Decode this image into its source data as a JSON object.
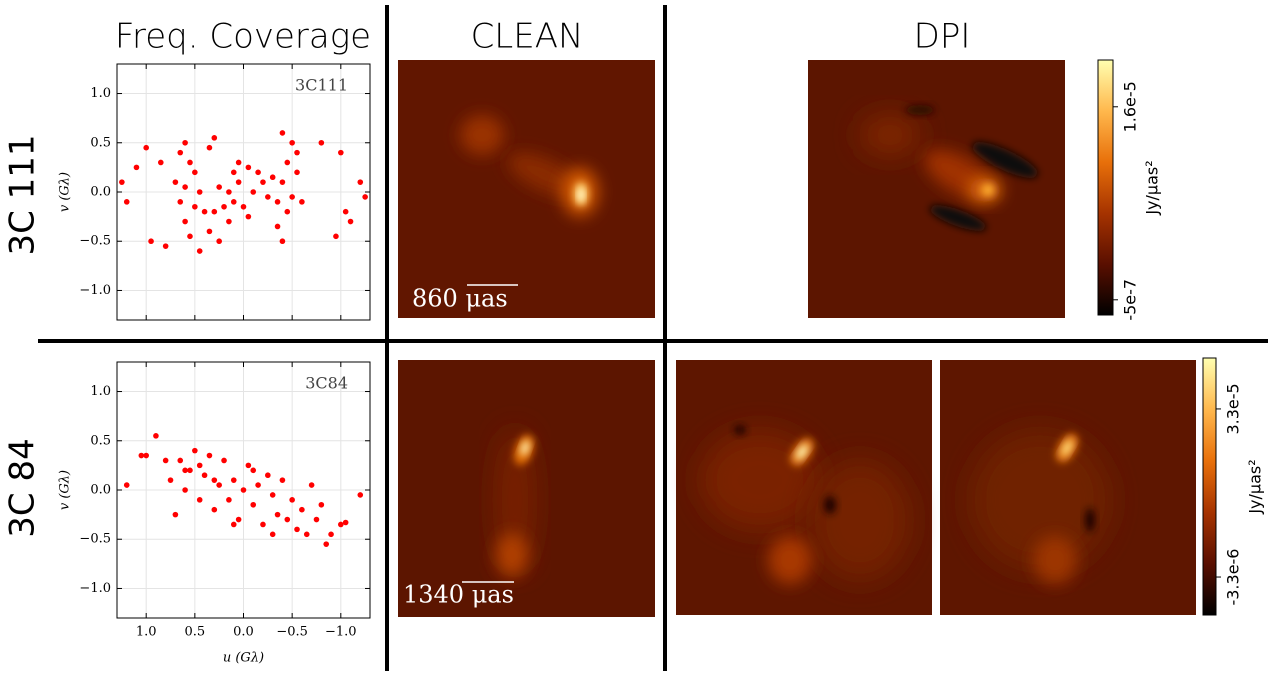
{
  "figure": {
    "column_titles": [
      "Freq. Coverage",
      "CLEAN",
      "DPI"
    ],
    "row_labels": [
      "3C 111",
      "3C 84"
    ],
    "scale_bars": [
      "860 μas",
      "1340 μas"
    ]
  },
  "chart_data": [
    {
      "type": "scatter",
      "annotation": "3C111",
      "ylabel": "v (Gλ)",
      "color": "#ff0000",
      "grid": true,
      "xlim": [
        1.3,
        -1.3
      ],
      "ylim": [
        -1.3,
        1.3
      ],
      "xticks": [
        1,
        0.5,
        0,
        -0.5,
        -1
      ],
      "yticks": [
        {
          "value": 1,
          "label": "1.0"
        },
        {
          "value": 0.5,
          "label": "0.5"
        },
        {
          "value": 0,
          "label": "0.0"
        },
        {
          "value": -0.5,
          "label": "−0.5"
        },
        {
          "value": -1,
          "label": "−1.0"
        }
      ],
      "x": [
        0.65,
        0.6,
        0.55,
        0.7,
        0.65,
        0.6,
        0.55,
        0.45,
        0.5,
        0.45,
        0.4,
        0.35,
        0.3,
        0.35,
        0.25,
        0.5,
        0.6,
        0.1,
        0.05,
        -0.05,
        -0.15,
        0.15,
        0.1,
        0,
        -0.1,
        -0.2,
        -0.25,
        0.05,
        0.2,
        -0.05,
        0.25,
        0.3,
        0.15,
        -0.4,
        -0.5,
        -0.45,
        -0.55,
        -0.4,
        -0.5,
        -0.45,
        -0.35,
        -0.4,
        -0.6,
        -0.55,
        -0.3,
        -0.35,
        1.25,
        1.2,
        1,
        0.95,
        1.1,
        0.8,
        -1.2,
        -1.25,
        -1,
        -1.05,
        -0.95,
        -0.8,
        -1.1,
        0.85
      ],
      "values": [
        0.4,
        0.5,
        0.3,
        0.1,
        -0.1,
        -0.3,
        -0.45,
        -0.6,
        0.2,
        0,
        -0.2,
        0.45,
        0.55,
        -0.4,
        -0.5,
        -0.15,
        0.05,
        0.2,
        0.3,
        0.25,
        0.2,
        0,
        -0.1,
        -0.15,
        0,
        0.1,
        -0.05,
        0.1,
        -0.15,
        -0.25,
        0.05,
        -0.2,
        -0.3,
        0.6,
        0.5,
        0.3,
        0.2,
        0.1,
        -0.05,
        -0.2,
        -0.35,
        -0.5,
        -0.1,
        0.4,
        0.15,
        -0.1,
        0.1,
        -0.1,
        0.45,
        -0.5,
        0.25,
        -0.55,
        0.1,
        -0.05,
        0.4,
        -0.2,
        -0.45,
        0.5,
        -0.3,
        0.3
      ]
    },
    {
      "type": "scatter",
      "annotation": "3C84",
      "ylabel": "v (Gλ)",
      "xlabel": "u (Gλ)",
      "color": "#ff0000",
      "grid": true,
      "xlim": [
        1.3,
        -1.3
      ],
      "ylim": [
        -1.3,
        1.3
      ],
      "xticks": [
        {
          "value": 1,
          "label": "1.0"
        },
        {
          "value": 0.5,
          "label": "0.5"
        },
        {
          "value": 0,
          "label": "0.0"
        },
        {
          "value": -0.5,
          "label": "−0.5"
        },
        {
          "value": -1,
          "label": "−1.0"
        }
      ],
      "yticks": [
        {
          "value": 1,
          "label": "1.0"
        },
        {
          "value": 0.5,
          "label": "0.5"
        },
        {
          "value": 0,
          "label": "0.0"
        },
        {
          "value": -0.5,
          "label": "−0.5"
        },
        {
          "value": -1,
          "label": "−1.0"
        }
      ],
      "x": [
        1.2,
        1,
        1.05,
        0.9,
        0.8,
        0.75,
        0.7,
        0.65,
        0.6,
        0.55,
        0.5,
        0.45,
        0.4,
        0.35,
        0.3,
        0.25,
        0.2,
        0.15,
        0.1,
        0.05,
        0,
        -0.05,
        -0.1,
        -0.15,
        -0.2,
        -0.25,
        -0.3,
        -0.35,
        -0.4,
        -0.45,
        -0.5,
        -0.55,
        -0.6,
        -0.65,
        -0.7,
        -0.75,
        -0.8,
        -0.85,
        -0.9,
        -1,
        -1.05,
        -1.2,
        0.6,
        0.3,
        -0.1,
        0.1,
        0.45,
        -0.3
      ],
      "values": [
        0.05,
        0.35,
        0.35,
        0.55,
        0.3,
        0.1,
        -0.25,
        0.3,
        0,
        0.2,
        0.4,
        -0.1,
        0.15,
        0.35,
        -0.2,
        0.05,
        0.3,
        -0.1,
        0.1,
        -0.3,
        0,
        0.25,
        -0.15,
        0.05,
        -0.35,
        0.15,
        -0.05,
        -0.25,
        0.1,
        -0.3,
        -0.1,
        -0.4,
        -0.2,
        -0.45,
        0.05,
        -0.3,
        -0.15,
        -0.55,
        -0.45,
        -0.35,
        -0.33,
        -0.05,
        0.2,
        0.1,
        0.2,
        -0.35,
        0.25,
        -0.45
      ]
    },
    {
      "type": "colorbar",
      "label": "Jy/μas²",
      "colors": [
        "#000000",
        "#5a0f00",
        "#a63300",
        "#e8700a",
        "#ffb84d",
        "#ffffb0"
      ],
      "ylim": [
        -1.8e-06,
        2e-05
      ],
      "yticks": [
        {
          "value": 1.6e-05,
          "label": "1.6e-5"
        },
        {
          "value": -5e-07,
          "label": "-5e-7"
        }
      ]
    },
    {
      "type": "colorbar",
      "label": "Jy/μas²",
      "colors": [
        "#000000",
        "#5a0f00",
        "#a63300",
        "#e8700a",
        "#ffb84d",
        "#ffffb0"
      ],
      "ylim": [
        -1.15e-05,
        4.4e-05
      ],
      "yticks": [
        {
          "value": 3.3e-05,
          "label": "3.3e-5"
        },
        {
          "value": -3.3e-06,
          "label": "-3.3e-6"
        }
      ]
    }
  ]
}
